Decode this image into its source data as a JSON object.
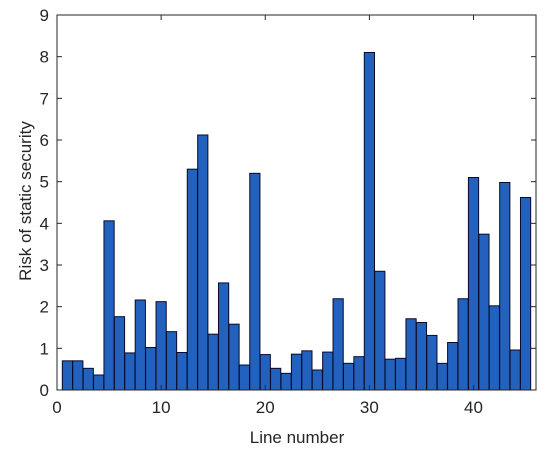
{
  "chart_data": {
    "type": "bar",
    "title": "",
    "xlabel": "Line number",
    "ylabel": "Risk of static security",
    "xlim": [
      0,
      46
    ],
    "ylim": [
      0,
      9
    ],
    "xticks": [
      0,
      10,
      20,
      30,
      40
    ],
    "yticks": [
      0,
      1,
      2,
      3,
      4,
      5,
      6,
      7,
      8,
      9
    ],
    "grid": false,
    "legend": "none",
    "bar_color": "#2262BE",
    "bar_edge_color": "#0A0A28",
    "series": [
      {
        "x": [
          1,
          2,
          3,
          4,
          5,
          6,
          7,
          8,
          9,
          10,
          11,
          12,
          13,
          14,
          15,
          16,
          17,
          18,
          19,
          20,
          21,
          22,
          23,
          24,
          25,
          26,
          27,
          28,
          29,
          30,
          31,
          32,
          33,
          34,
          35,
          36,
          37,
          38,
          39,
          40,
          41,
          42,
          43,
          44,
          45
        ],
        "values": [
          0.7,
          0.7,
          0.52,
          0.36,
          4.06,
          1.76,
          0.89,
          2.16,
          1.02,
          2.12,
          1.4,
          0.9,
          5.3,
          6.12,
          1.34,
          2.57,
          1.58,
          0.6,
          5.2,
          0.85,
          0.52,
          0.4,
          0.86,
          0.94,
          0.48,
          0.91,
          2.19,
          0.64,
          0.8,
          8.1,
          2.85,
          0.74,
          0.76,
          1.71,
          1.62,
          1.31,
          0.64,
          1.14,
          2.19,
          5.1,
          3.74,
          2.02,
          4.98,
          0.96,
          4.62
        ]
      }
    ]
  }
}
